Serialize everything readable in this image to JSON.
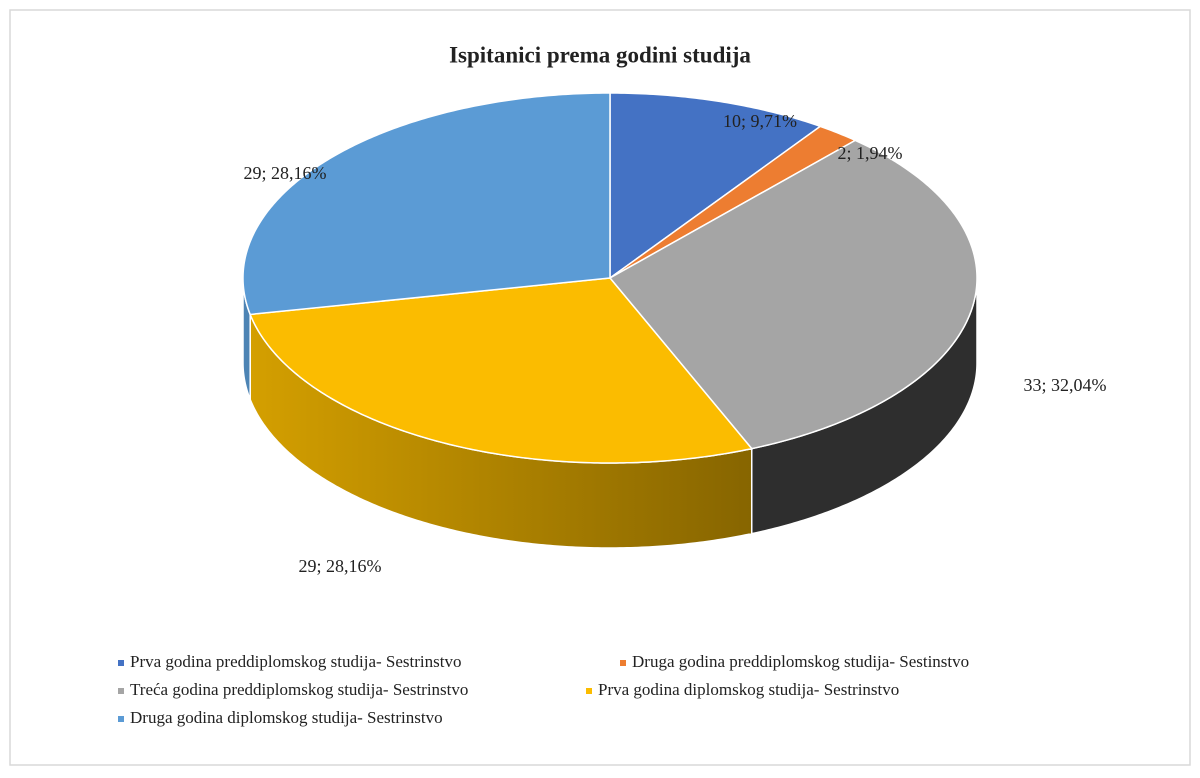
{
  "chart_data": {
    "type": "pie3d",
    "title": "Ispitanici prema godini studija",
    "categories": [
      "Prva godina preddiplomskog studija- Sestrinstvo",
      "Druga godina preddiplomskog studija- Sestinstvo",
      "Treća godina preddiplomskog studija- Sestrinstvo",
      "Prva godina diplomskog studija- Sestrinstvo",
      "Druga godina diplomskog studija- Sestrinstvo"
    ],
    "values": [
      10,
      2,
      33,
      29,
      29
    ],
    "value_labels": [
      "10; 9,71%",
      "2; 1,94%",
      "33; 32,04%",
      "29; 28,16%",
      "29; 28,16%"
    ],
    "colors": [
      "#4472c4",
      "#ed7d31",
      "#a5a5a5",
      "#fbbc00",
      "#5b9bd5"
    ],
    "legend": "bottom"
  }
}
